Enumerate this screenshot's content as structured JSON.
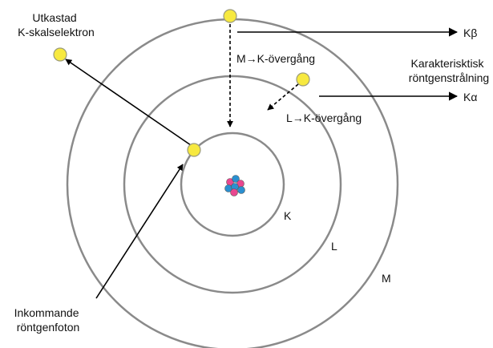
{
  "labels": {
    "ejected_electron": [
      "Utkastad",
      "K-skalselektron"
    ],
    "k_beta": "Kβ",
    "m_to_k": "M→K-övergång",
    "characteristic": [
      "Karakterisktisk",
      "röntgenstrålning"
    ],
    "k_alpha": "Kα",
    "l_to_k": "L→K-övergång",
    "shell_k": "K",
    "shell_l": "L",
    "shell_m": "M",
    "incoming_photon": [
      "Inkommande",
      "röntgenfoton"
    ]
  }
}
